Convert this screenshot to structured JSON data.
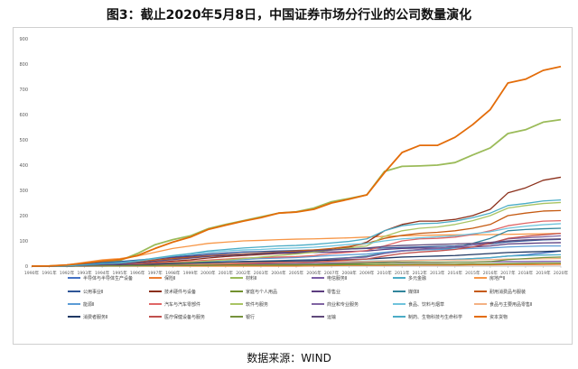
{
  "title": "图3：截止2020年5月8日，中国证券市场分行业的公司数量演化",
  "source": "数据来源：WIND",
  "chart_data": {
    "type": "line",
    "title": "",
    "xlabel": "",
    "ylabel": "",
    "ylim": [
      0,
      900
    ],
    "yticks": [
      0,
      100,
      200,
      300,
      400,
      500,
      600,
      700,
      800,
      900
    ],
    "grid": false,
    "legend_position": "bottom",
    "x": [
      "1990年",
      "1991年",
      "1992年",
      "1993年",
      "1994年",
      "1995年",
      "1996年",
      "1997年",
      "1998年",
      "1999年",
      "2000年",
      "2001年",
      "2002年",
      "2003年",
      "2004年",
      "2005年",
      "2006年",
      "2007年",
      "2008年",
      "2009年",
      "2010年",
      "2011年",
      "2012年",
      "2013年",
      "2014年",
      "2015年",
      "2016年",
      "2017年",
      "2018年",
      "2019年",
      "2020年"
    ],
    "series": [
      {
        "name": "半导体与半导体生产设备",
        "color": "#4472c4",
        "values": [
          0,
          0,
          0,
          1,
          1,
          1,
          2,
          3,
          4,
          5,
          6,
          7,
          8,
          8,
          9,
          9,
          10,
          12,
          13,
          14,
          18,
          22,
          24,
          25,
          27,
          30,
          33,
          40,
          45,
          52,
          60
        ]
      },
      {
        "name": "保险Ⅱ",
        "color": "#ed7d31",
        "values": [
          0,
          0,
          0,
          0,
          0,
          0,
          0,
          0,
          0,
          0,
          0,
          0,
          0,
          0,
          0,
          0,
          1,
          2,
          3,
          3,
          3,
          4,
          4,
          4,
          4,
          5,
          5,
          6,
          6,
          6,
          7
        ]
      },
      {
        "name": "材料Ⅱ",
        "color": "#9bbb59",
        "values": [
          0,
          1,
          4,
          10,
          18,
          22,
          50,
          85,
          105,
          120,
          148,
          165,
          180,
          195,
          210,
          215,
          230,
          255,
          268,
          282,
          375,
          395,
          397,
          400,
          410,
          440,
          468,
          525,
          540,
          570,
          580
        ]
      },
      {
        "name": "电信服务Ⅱ",
        "color": "#7b5ea7",
        "values": [
          0,
          0,
          0,
          0,
          0,
          1,
          2,
          3,
          4,
          5,
          6,
          7,
          8,
          8,
          9,
          9,
          10,
          11,
          12,
          13,
          14,
          14,
          15,
          15,
          16,
          16,
          17,
          18,
          18,
          19,
          19
        ]
      },
      {
        "name": "多元金融",
        "color": "#4bacc6",
        "values": [
          0,
          0,
          1,
          3,
          5,
          6,
          7,
          8,
          9,
          10,
          11,
          12,
          13,
          14,
          15,
          16,
          17,
          18,
          19,
          20,
          21,
          22,
          23,
          24,
          26,
          30,
          34,
          40,
          42,
          44,
          45
        ]
      },
      {
        "name": "房地产Ⅱ",
        "color": "#f79646",
        "values": [
          0,
          0,
          5,
          15,
          25,
          30,
          40,
          55,
          70,
          80,
          90,
          95,
          100,
          102,
          105,
          107,
          108,
          110,
          112,
          115,
          118,
          120,
          122,
          123,
          124,
          124,
          125,
          126,
          127,
          128,
          130
        ]
      },
      {
        "name": "公用事业Ⅱ",
        "color": "#2f5597",
        "values": [
          0,
          0,
          2,
          8,
          14,
          18,
          24,
          30,
          36,
          42,
          48,
          52,
          56,
          58,
          60,
          62,
          64,
          66,
          68,
          70,
          72,
          74,
          76,
          78,
          80,
          84,
          88,
          96,
          100,
          104,
          106
        ]
      },
      {
        "name": "技术硬件与设备",
        "color": "#8b2f1a",
        "values": [
          0,
          0,
          1,
          3,
          5,
          6,
          10,
          15,
          20,
          25,
          32,
          38,
          42,
          46,
          50,
          52,
          55,
          65,
          75,
          95,
          140,
          165,
          178,
          178,
          185,
          200,
          225,
          290,
          310,
          340,
          352
        ]
      },
      {
        "name": "家庭与个人用品",
        "color": "#72902e",
        "values": [
          0,
          0,
          0,
          1,
          1,
          1,
          2,
          2,
          3,
          3,
          3,
          4,
          4,
          4,
          4,
          4,
          5,
          5,
          6,
          6,
          7,
          7,
          8,
          8,
          8,
          9,
          9,
          10,
          11,
          12,
          12
        ]
      },
      {
        "name": "零售业",
        "color": "#5c3d7f",
        "values": [
          0,
          0,
          1,
          5,
          10,
          14,
          20,
          28,
          34,
          38,
          42,
          46,
          48,
          50,
          52,
          53,
          54,
          56,
          58,
          60,
          66,
          70,
          72,
          72,
          74,
          76,
          80,
          88,
          90,
          92,
          93
        ]
      },
      {
        "name": "媒体Ⅱ",
        "color": "#31859c",
        "values": [
          0,
          0,
          0,
          1,
          2,
          3,
          5,
          8,
          10,
          12,
          14,
          16,
          18,
          20,
          22,
          24,
          26,
          30,
          34,
          40,
          52,
          60,
          64,
          66,
          74,
          90,
          110,
          140,
          145,
          148,
          150
        ]
      },
      {
        "name": "耐用消费品与服装",
        "color": "#c55a11",
        "values": [
          0,
          0,
          1,
          4,
          8,
          10,
          16,
          24,
          30,
          35,
          40,
          44,
          48,
          52,
          56,
          60,
          64,
          70,
          78,
          90,
          110,
          122,
          130,
          134,
          140,
          150,
          165,
          200,
          210,
          218,
          220
        ]
      },
      {
        "name": "能源Ⅱ",
        "color": "#5b9bd5",
        "values": [
          0,
          0,
          0,
          1,
          2,
          3,
          5,
          8,
          12,
          15,
          18,
          22,
          26,
          30,
          32,
          34,
          38,
          42,
          45,
          48,
          55,
          62,
          65,
          66,
          68,
          70,
          72,
          76,
          78,
          80,
          80
        ]
      },
      {
        "name": "汽车与汽车零部件",
        "color": "#e06666",
        "values": [
          0,
          0,
          0,
          2,
          4,
          5,
          8,
          12,
          16,
          20,
          24,
          28,
          32,
          34,
          36,
          38,
          42,
          50,
          55,
          62,
          80,
          100,
          108,
          110,
          115,
          125,
          140,
          160,
          170,
          178,
          180
        ]
      },
      {
        "name": "软件与服务",
        "color": "#a9c463",
        "values": [
          0,
          0,
          0,
          1,
          2,
          3,
          5,
          8,
          12,
          16,
          20,
          24,
          30,
          36,
          42,
          48,
          55,
          64,
          72,
          80,
          118,
          140,
          150,
          155,
          165,
          180,
          200,
          230,
          240,
          248,
          252
        ]
      },
      {
        "name": "商业和专业服务",
        "color": "#8064a2",
        "values": [
          0,
          0,
          0,
          1,
          2,
          3,
          4,
          6,
          8,
          10,
          12,
          14,
          16,
          18,
          20,
          22,
          24,
          28,
          32,
          36,
          50,
          60,
          66,
          70,
          76,
          84,
          92,
          108,
          112,
          116,
          120
        ]
      },
      {
        "name": "食品、饮料与烟草",
        "color": "#6fc3dc",
        "values": [
          0,
          0,
          1,
          4,
          8,
          12,
          20,
          30,
          40,
          48,
          55,
          60,
          64,
          66,
          70,
          72,
          75,
          80,
          86,
          90,
          100,
          108,
          112,
          116,
          120,
          128,
          136,
          150,
          158,
          164,
          168
        ]
      },
      {
        "name": "食品与主要用品零售Ⅱ",
        "color": "#f4b183",
        "values": [
          0,
          0,
          0,
          1,
          2,
          3,
          4,
          6,
          8,
          10,
          11,
          12,
          13,
          14,
          15,
          15,
          16,
          17,
          18,
          18,
          20,
          22,
          23,
          24,
          24,
          25,
          26,
          28,
          28,
          29,
          30
        ]
      },
      {
        "name": "消费者服务Ⅱ",
        "color": "#1f3864",
        "values": [
          0,
          0,
          0,
          1,
          2,
          3,
          5,
          8,
          10,
          12,
          14,
          16,
          18,
          19,
          20,
          21,
          22,
          24,
          26,
          28,
          32,
          36,
          38,
          40,
          42,
          46,
          50,
          54,
          56,
          58,
          60
        ]
      },
      {
        "name": "医疗保健设备与服务",
        "color": "#c0504d",
        "values": [
          0,
          0,
          0,
          0,
          1,
          1,
          2,
          3,
          4,
          5,
          6,
          8,
          10,
          12,
          14,
          15,
          16,
          20,
          24,
          28,
          40,
          50,
          56,
          60,
          66,
          76,
          90,
          110,
          118,
          124,
          130
        ]
      },
      {
        "name": "银行",
        "color": "#76923c",
        "values": [
          0,
          0,
          0,
          1,
          1,
          1,
          2,
          2,
          3,
          3,
          4,
          4,
          5,
          5,
          6,
          6,
          7,
          8,
          10,
          12,
          14,
          16,
          16,
          16,
          16,
          16,
          18,
          26,
          30,
          34,
          36
        ]
      },
      {
        "name": "运输",
        "color": "#604a7b",
        "values": [
          0,
          0,
          1,
          3,
          6,
          8,
          14,
          20,
          26,
          32,
          38,
          42,
          46,
          50,
          54,
          56,
          60,
          64,
          68,
          72,
          78,
          82,
          84,
          86,
          88,
          90,
          94,
          100,
          104,
          106,
          108
        ]
      },
      {
        "name": "制药、生物科技与生命科学",
        "color": "#4bacc6",
        "values": [
          0,
          0,
          1,
          5,
          10,
          14,
          22,
          32,
          42,
          50,
          60,
          66,
          72,
          76,
          80,
          82,
          86,
          92,
          98,
          108,
          140,
          160,
          168,
          170,
          178,
          192,
          210,
          240,
          248,
          258,
          262
        ]
      },
      {
        "name": "资本货物",
        "color": "#e36c09",
        "values": [
          0,
          1,
          5,
          12,
          20,
          26,
          42,
          70,
          95,
          115,
          145,
          162,
          178,
          192,
          210,
          214,
          225,
          250,
          265,
          282,
          370,
          450,
          478,
          478,
          510,
          560,
          620,
          725,
          740,
          775,
          790
        ]
      }
    ]
  }
}
